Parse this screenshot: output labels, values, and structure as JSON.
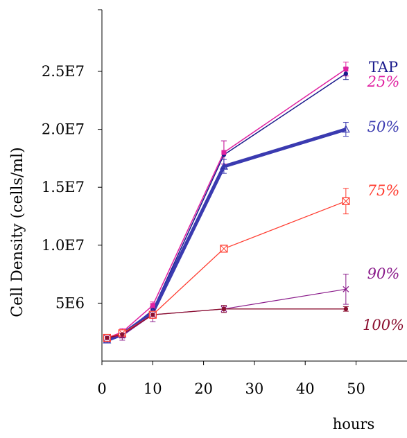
{
  "chart_data": {
    "type": "line",
    "title": "",
    "xlabel": "hours",
    "ylabel": "Cell Density (cells/ml)",
    "xlim": [
      0,
      60
    ],
    "ylim": [
      0,
      30000000
    ],
    "x_ticks": [
      0,
      10,
      20,
      30,
      40,
      50
    ],
    "x_tick_labels": [
      "0",
      "10",
      "20",
      "30",
      "40",
      "50"
    ],
    "y_ticks": [
      5000000,
      10000000,
      15000000,
      20000000,
      25000000
    ],
    "y_tick_labels": [
      "5E6",
      "1.0E7",
      "1.5E7",
      "2.0E7",
      "2.5E7"
    ],
    "grid": false,
    "legend": "inline labels at right end of each series",
    "series": [
      {
        "name": "TAP",
        "color": "#1a1a8c",
        "marker": "circle",
        "x": [
          1,
          4,
          10,
          24,
          48
        ],
        "y": [
          2000000,
          2300000,
          4400000,
          17800000,
          24800000
        ],
        "err": [
          200000,
          300000,
          300000,
          1200000,
          500000
        ]
      },
      {
        "name": "25%",
        "color": "#e020a0",
        "marker": "square",
        "x": [
          1,
          4,
          10,
          24,
          48
        ],
        "y": [
          2000000,
          2500000,
          4800000,
          18000000,
          25200000
        ],
        "err": [
          200000,
          300000,
          300000,
          1000000,
          600000
        ]
      },
      {
        "name": "50%",
        "color": "#3a3ab0",
        "marker": "triangle",
        "x": [
          1,
          4,
          10,
          24,
          48
        ],
        "y": [
          1800000,
          2300000,
          4200000,
          16800000,
          20000000
        ],
        "err": [
          200000,
          300000,
          400000,
          600000,
          600000
        ]
      },
      {
        "name": "75%",
        "color": "#ff3b2f",
        "marker": "square-x",
        "x": [
          1,
          4,
          10,
          24,
          48
        ],
        "y": [
          2000000,
          2400000,
          4000000,
          9700000,
          13800000
        ],
        "err": [
          200000,
          300000,
          300000,
          300000,
          1100000
        ]
      },
      {
        "name": "90%",
        "color": "#8a1a8a",
        "marker": "x",
        "x": [
          1,
          4,
          10,
          24,
          48
        ],
        "y": [
          2000000,
          2200000,
          4000000,
          4500000,
          6200000
        ],
        "err": [
          200000,
          400000,
          600000,
          300000,
          1300000
        ]
      },
      {
        "name": "100%",
        "color": "#8b1030",
        "marker": "circle",
        "x": [
          1,
          4,
          10,
          24,
          48
        ],
        "y": [
          2000000,
          2300000,
          4000000,
          4500000,
          4500000
        ],
        "err": [
          200000,
          300000,
          300000,
          300000,
          200000
        ]
      }
    ]
  }
}
